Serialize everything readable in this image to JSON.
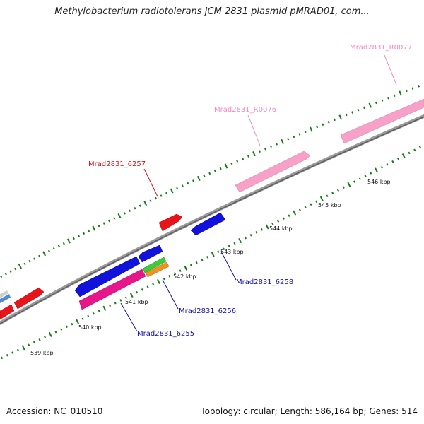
{
  "title": "Methylobacterium radiotolerans JCM 2831 plasmid pMRAD01, com...",
  "footer": {
    "accession": "Accession: NC_010510",
    "summary": "Topology: circular; Length: 586,164 bp; Genes: 514"
  },
  "colors": {
    "backbone": "#8c8c8c",
    "tick": "#1a7a1a",
    "forward_gene": "#e8141b",
    "reverse_gene": "#1212dd",
    "rna": "#f7a1c8",
    "magenta": "#e8168a",
    "green": "#3ccc3c",
    "orange": "#f0921e",
    "steelblue": "#4d8fcc",
    "label_red": "#dd1111",
    "label_blue": "#1010aa",
    "label_pink": "#f08cc0"
  },
  "scale": {
    "ticks": [
      {
        "label": "539 kbp"
      },
      {
        "label": "540 kbp"
      },
      {
        "label": "541 kbp"
      },
      {
        "label": "542 kbp"
      },
      {
        "label": "543 kbp"
      },
      {
        "label": "544 kbp"
      },
      {
        "label": "545 kbp"
      },
      {
        "label": "546 kbp"
      }
    ]
  },
  "gene_labels": [
    {
      "id": "Mrad2831_R0077",
      "color_key": "label_pink"
    },
    {
      "id": "Mrad2831_R0076",
      "color_key": "label_pink"
    },
    {
      "id": "Mrad2831_6257",
      "color_key": "label_red"
    },
    {
      "id": "Mrad2831_6258",
      "color_key": "label_blue"
    },
    {
      "id": "Mrad2831_6256",
      "color_key": "label_blue"
    },
    {
      "id": "Mrad2831_6255",
      "color_key": "label_blue"
    }
  ]
}
